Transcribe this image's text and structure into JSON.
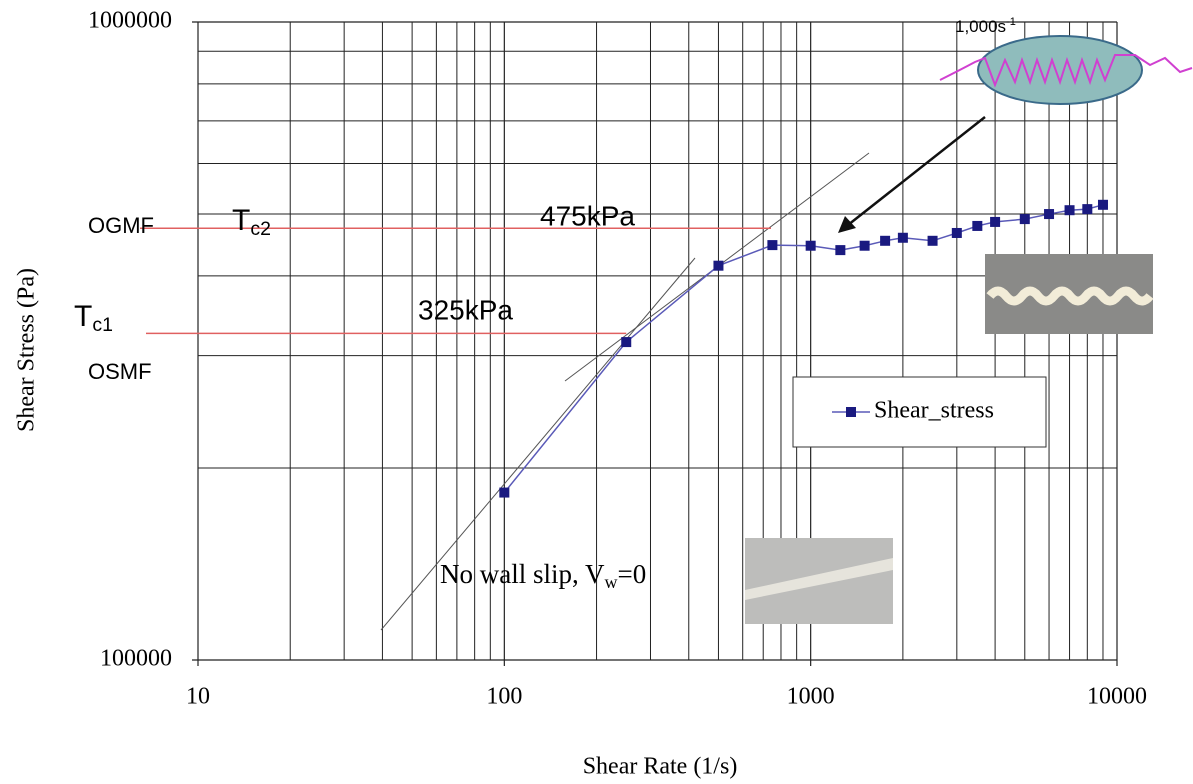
{
  "chart_data": {
    "type": "line",
    "x_label": "Shear Rate (1/s)",
    "y_label": "Shear Stress (Pa)",
    "log_x": true,
    "log_y": true,
    "grid": true,
    "xlim": [
      10,
      10000
    ],
    "xticks": [
      10,
      100,
      1000,
      10000
    ],
    "x_minor_grid": [
      20,
      30,
      40,
      50,
      60,
      70,
      80,
      90,
      200,
      300,
      400,
      500,
      600,
      700,
      800,
      900,
      2000,
      3000,
      4000,
      5000,
      6000,
      7000,
      8000,
      9000
    ],
    "ylim": [
      100000,
      1000000
    ],
    "yticks": [
      100000,
      1000000
    ],
    "y_minor_grid": [
      200000,
      300000,
      400000,
      500000,
      600000,
      700000,
      800000,
      900000
    ],
    "legend_position": "right",
    "series": [
      {
        "name": "Shear_stress",
        "color": "#1a1a80",
        "line_color": "#5a5ab8",
        "x": [
          100,
          250,
          500,
          750,
          1000,
          1250,
          1500,
          1750,
          2000,
          2500,
          3000,
          3500,
          4000,
          5000,
          6000,
          7000,
          8000,
          9000
        ],
        "values": [
          183000,
          315000,
          415000,
          447000,
          446000,
          439000,
          446000,
          454000,
          459000,
          454000,
          467000,
          479000,
          486000,
          491000,
          500000,
          507000,
          509000,
          517000
        ]
      }
    ],
    "reference_lines": [
      {
        "value": 475000,
        "label": "475kPa",
        "color": "#e06060"
      },
      {
        "value": 325000,
        "label": "325kPa",
        "color": "#e06060"
      }
    ],
    "annotations": {
      "ogmf": "OGMF",
      "osmf": "OSMF",
      "tc2": {
        "main": "T",
        "sub": "c2"
      },
      "tc1": {
        "main": "T",
        "sub": "c1"
      },
      "no_slip": {
        "main": "No wall slip, V",
        "sub": "w",
        "tail": "=0"
      },
      "inset": {
        "main": "1,000s",
        "sup": "-1"
      }
    }
  }
}
